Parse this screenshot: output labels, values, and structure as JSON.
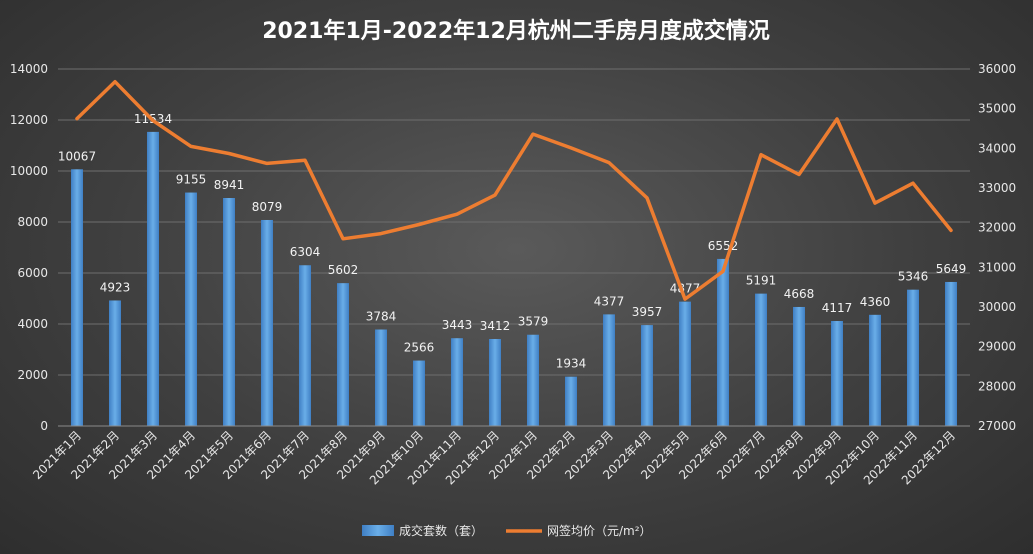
{
  "chart_data": {
    "type": "bar",
    "title": "2021年1月-2022年12月杭州二手房月度成交情况",
    "categories": [
      "2021年1月",
      "2021年2月",
      "2021年3月",
      "2021年4月",
      "2021年5月",
      "2021年6月",
      "2021年7月",
      "2021年8月",
      "2021年9月",
      "2021年10月",
      "2021年11月",
      "2021年12月",
      "2022年1月",
      "2022年2月",
      "2022年3月",
      "2022年4月",
      "2022年5月",
      "2022年6月",
      "2022年7月",
      "2022年8月",
      "2022年9月",
      "2022年10月",
      "2022年11月",
      "2022年12月"
    ],
    "series": [
      {
        "name": "成交套数（套）",
        "type": "bar",
        "axis": "left",
        "color": "#5b9bd5",
        "values": [
          10067,
          4923,
          11534,
          9155,
          8941,
          8079,
          6304,
          5602,
          3784,
          2566,
          3443,
          3412,
          3579,
          1934,
          4377,
          3957,
          4877,
          6552,
          5191,
          4668,
          4117,
          4360,
          5346,
          5649
        ]
      },
      {
        "name": "网签均价（元/m²）",
        "type": "line",
        "axis": "right",
        "color": "#ed7d31",
        "values": [
          34750,
          35680,
          34700,
          34050,
          33870,
          33620,
          33700,
          31720,
          31850,
          32080,
          32340,
          32820,
          34360,
          34010,
          33640,
          32750,
          30200,
          30900,
          33840,
          33340,
          34740,
          32620,
          33120,
          31930
        ]
      }
    ],
    "y_left": {
      "min": 0,
      "max": 14000,
      "step": 2000,
      "ticks": [
        "0",
        "2000",
        "4000",
        "6000",
        "8000",
        "10000",
        "12000",
        "14000"
      ]
    },
    "y_right": {
      "min": 27000,
      "max": 36000,
      "step": 1000,
      "ticks": [
        "27000",
        "28000",
        "29000",
        "30000",
        "31000",
        "32000",
        "33000",
        "34000",
        "35000",
        "36000"
      ]
    },
    "legend_position": "bottom-center",
    "grid": "horizontal"
  }
}
